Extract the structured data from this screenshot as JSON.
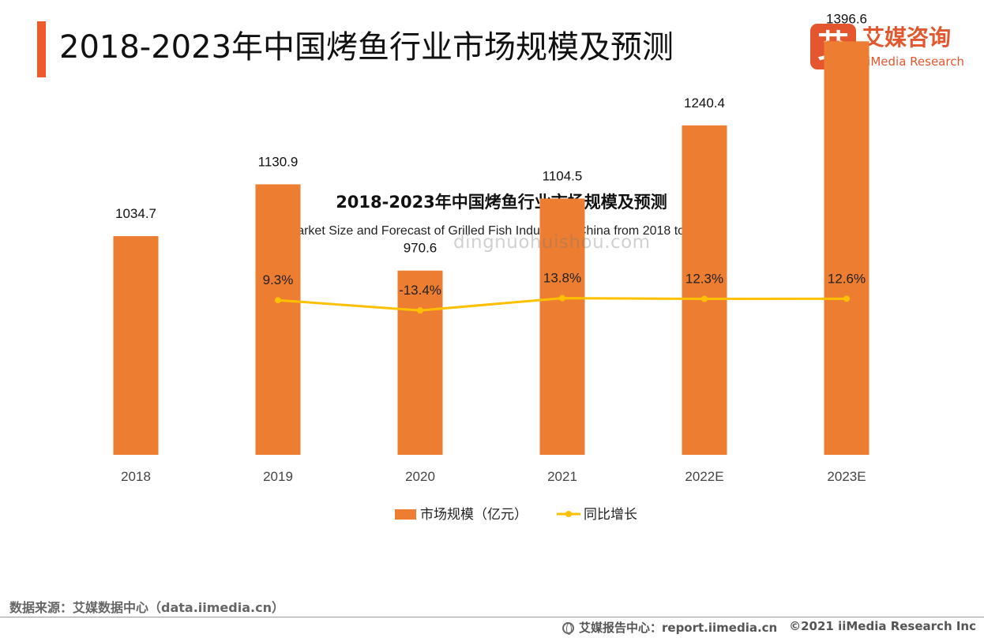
{
  "header": {
    "title": "2018-2023年中国烤鱼行业市场规模及预测",
    "accent_color": "#F05A28"
  },
  "logo": {
    "mark": "艾",
    "name_cn": "艾媒咨询",
    "name_en": "iiMedia Research",
    "color": "#E4572E"
  },
  "watermark": "dingnuohuishou.com",
  "chart_data": {
    "type": "bar",
    "title": "2018-2023年中国烤鱼行业市场规模及预测",
    "subtitle": "Market Size and Forecast of Grilled Fish Industry in China from 2018 to 2023",
    "categories": [
      "2018",
      "2019",
      "2020",
      "2021",
      "2022E",
      "2023E"
    ],
    "series": [
      {
        "name": "市场规模（亿元）",
        "type": "bar",
        "color": "#ED7D31",
        "values": [
          1034.7,
          1130.9,
          970.6,
          1104.5,
          1240.4,
          1396.6
        ],
        "labels": [
          "1034.7",
          "1130.9",
          "970.6",
          "1104.5",
          "1240.4",
          "1396.6"
        ]
      },
      {
        "name": "同比增长",
        "type": "line",
        "color": "#FFC000",
        "values": [
          null,
          9.3,
          -13.4,
          13.8,
          12.3,
          12.6
        ],
        "labels": [
          "",
          "9.3%",
          "-13.4%",
          "13.8%",
          "12.3%",
          "12.6%"
        ]
      }
    ],
    "grid": false,
    "legend_position": "bottom"
  },
  "footer": {
    "source": "数据来源：艾媒数据中心（data.iimedia.cn）",
    "report_center": "艾媒报告中心：report.iimedia.cn",
    "copyright": "©2021  iiMedia Research  Inc"
  }
}
